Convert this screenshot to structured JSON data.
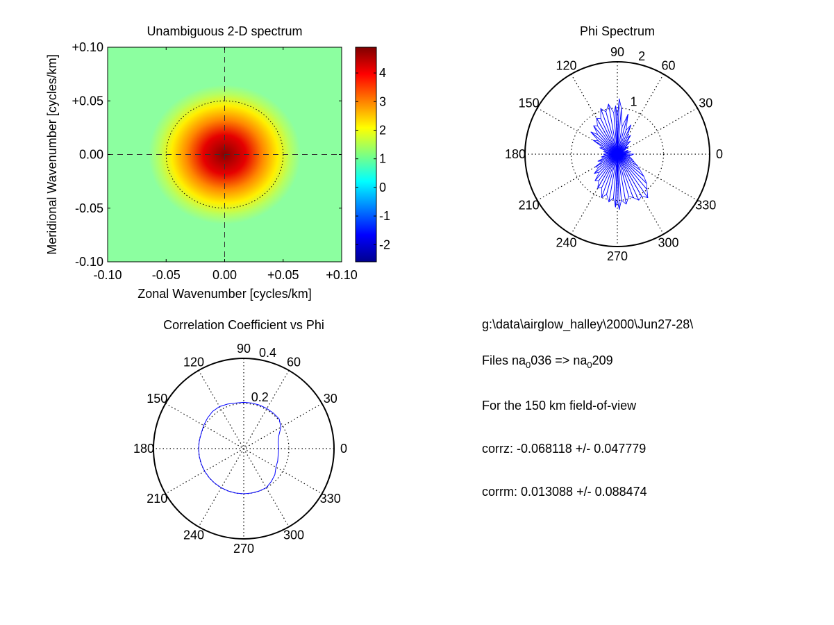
{
  "chart_data": [
    {
      "type": "heatmap",
      "title": "Unambiguous 2-D spectrum",
      "xlabel": "Zonal Wavenumber [cycles/km]",
      "ylabel": "Meridional Wavenumber [cycles/km]",
      "xlim": [
        -0.1,
        0.1
      ],
      "ylim": [
        -0.1,
        0.1
      ],
      "xticks": [
        "-0.10",
        "-0.05",
        "0.00",
        "+0.05",
        "+0.10"
      ],
      "yticks": [
        "+0.10",
        "+0.05",
        "0.00",
        "-0.05",
        "-0.10"
      ],
      "colorbar": {
        "range": [
          -2.6,
          4.9
        ],
        "ticks": [
          "4",
          "3",
          "2",
          "1",
          "0",
          "-1",
          "-2"
        ],
        "colormap": "jet"
      },
      "background_level": 1.1,
      "peak": {
        "x": 0.0,
        "y": 0.0,
        "value": 4.8
      },
      "reference_circle_radius": 0.05,
      "crosshair": {
        "x": 0.0,
        "y": 0.0
      },
      "grid": false
    },
    {
      "type": "polar",
      "title": "Phi Spectrum",
      "angle_labels": [
        "0",
        "30",
        "60",
        "90",
        "120",
        "150",
        "180",
        "210",
        "240",
        "270",
        "300",
        "330"
      ],
      "radial_ticks": [
        "1",
        "2"
      ],
      "rmax": 2,
      "series_color": "#0000ff",
      "spikes": [
        [
          0,
          0.35
        ],
        [
          5,
          0.15
        ],
        [
          10,
          0.3
        ],
        [
          15,
          0.2
        ],
        [
          20,
          0.25
        ],
        [
          25,
          0.1
        ],
        [
          30,
          0.2
        ],
        [
          35,
          0.3
        ],
        [
          40,
          0.2
        ],
        [
          45,
          0.4
        ],
        [
          50,
          0.3
        ],
        [
          55,
          0.5
        ],
        [
          60,
          0.4
        ],
        [
          65,
          0.7
        ],
        [
          70,
          0.55
        ],
        [
          75,
          0.9
        ],
        [
          80,
          0.6
        ],
        [
          85,
          1.0
        ],
        [
          88,
          1.2
        ],
        [
          90,
          0.8
        ],
        [
          92,
          1.05
        ],
        [
          95,
          0.9
        ],
        [
          100,
          1.1
        ],
        [
          105,
          0.95
        ],
        [
          110,
          1.05
        ],
        [
          115,
          0.85
        ],
        [
          120,
          0.9
        ],
        [
          125,
          0.75
        ],
        [
          130,
          0.8
        ],
        [
          135,
          0.6
        ],
        [
          140,
          0.75
        ],
        [
          145,
          0.5
        ],
        [
          150,
          0.6
        ],
        [
          155,
          0.35
        ],
        [
          160,
          0.4
        ],
        [
          165,
          0.25
        ],
        [
          170,
          0.3
        ],
        [
          175,
          0.2
        ],
        [
          180,
          0.3
        ],
        [
          185,
          0.25
        ],
        [
          190,
          0.35
        ],
        [
          195,
          0.3
        ],
        [
          200,
          0.45
        ],
        [
          205,
          0.35
        ],
        [
          210,
          0.55
        ],
        [
          215,
          0.5
        ],
        [
          220,
          0.65
        ],
        [
          225,
          0.55
        ],
        [
          230,
          0.75
        ],
        [
          235,
          0.7
        ],
        [
          240,
          0.85
        ],
        [
          245,
          0.8
        ],
        [
          250,
          1.0
        ],
        [
          255,
          0.9
        ],
        [
          260,
          1.05
        ],
        [
          265,
          0.95
        ],
        [
          268,
          1.15
        ],
        [
          270,
          1.0
        ],
        [
          272,
          1.2
        ],
        [
          275,
          1.0
        ],
        [
          280,
          1.1
        ],
        [
          285,
          0.95
        ],
        [
          290,
          1.0
        ],
        [
          295,
          1.1
        ],
        [
          300,
          1.05
        ],
        [
          305,
          1.15
        ],
        [
          310,
          1.0
        ],
        [
          315,
          0.9
        ],
        [
          320,
          0.75
        ],
        [
          325,
          0.6
        ],
        [
          330,
          0.5
        ],
        [
          335,
          0.4
        ],
        [
          340,
          0.35
        ],
        [
          345,
          0.3
        ],
        [
          350,
          0.25
        ],
        [
          355,
          0.3
        ]
      ]
    },
    {
      "type": "polar",
      "title": "Correlation Coefficient vs Phi",
      "angle_labels": [
        "0",
        "30",
        "60",
        "90",
        "120",
        "150",
        "180",
        "210",
        "240",
        "270",
        "300",
        "330"
      ],
      "radial_ticks": [
        "0.2",
        "0.4"
      ],
      "rmax": 0.4,
      "series_color": "#0000ff",
      "curve": [
        [
          0,
          0.155
        ],
        [
          10,
          0.155
        ],
        [
          20,
          0.165
        ],
        [
          30,
          0.19
        ],
        [
          40,
          0.205
        ],
        [
          50,
          0.205
        ],
        [
          60,
          0.205
        ],
        [
          70,
          0.205
        ],
        [
          80,
          0.205
        ],
        [
          90,
          0.205
        ],
        [
          100,
          0.205
        ],
        [
          110,
          0.21
        ],
        [
          120,
          0.215
        ],
        [
          130,
          0.215
        ],
        [
          140,
          0.21
        ],
        [
          150,
          0.205
        ],
        [
          160,
          0.2
        ],
        [
          170,
          0.2
        ],
        [
          180,
          0.2
        ],
        [
          190,
          0.2
        ],
        [
          200,
          0.2
        ],
        [
          210,
          0.2
        ],
        [
          220,
          0.2
        ],
        [
          230,
          0.2
        ],
        [
          240,
          0.2
        ],
        [
          250,
          0.2
        ],
        [
          260,
          0.2
        ],
        [
          270,
          0.2
        ],
        [
          280,
          0.2
        ],
        [
          290,
          0.2
        ],
        [
          300,
          0.2
        ],
        [
          310,
          0.19
        ],
        [
          320,
          0.18
        ],
        [
          330,
          0.165
        ],
        [
          340,
          0.16
        ],
        [
          350,
          0.155
        ],
        [
          360,
          0.155
        ]
      ]
    }
  ],
  "info": {
    "path": "g:\\data\\airglow_halley\\2000\\Jun27-28\\",
    "files_prefix": "Files  na",
    "sub_1": "0",
    "files_mid_1": "036  =>  na",
    "sub_2": "0",
    "files_mid_2": "209",
    "fov": "For the  150 km field-of-view",
    "corrz": "corrz: -0.068118 +/- 0.047779",
    "corrm": "corrm: 0.013088 +/- 0.088474"
  }
}
